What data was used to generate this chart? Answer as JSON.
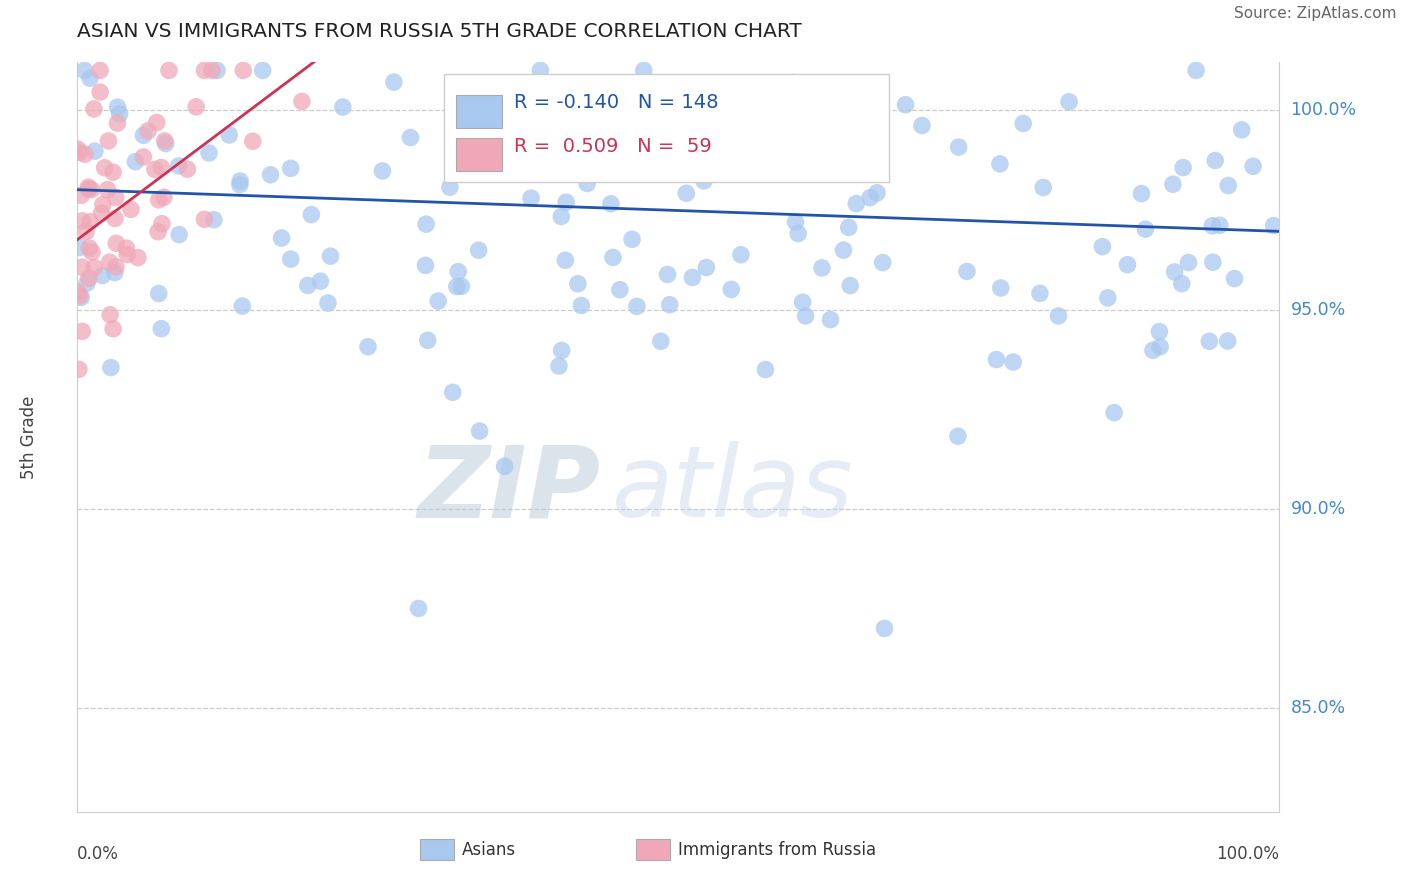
{
  "title": "ASIAN VS IMMIGRANTS FROM RUSSIA 5TH GRADE CORRELATION CHART",
  "source_text": "Source: ZipAtlas.com",
  "legend_blue_r": "-0.140",
  "legend_blue_n": "148",
  "legend_pink_r": "0.509",
  "legend_pink_n": "59",
  "blue_color": "#a8c8f0",
  "pink_color": "#f0a8b8",
  "blue_line_color": "#2255aa",
  "pink_line_color": "#cc3355",
  "ytick_labels": [
    "85.0%",
    "90.0%",
    "95.0%",
    "100.0%"
  ],
  "ytick_values": [
    0.85,
    0.9,
    0.95,
    1.0
  ],
  "xlim": [
    0.0,
    1.0
  ],
  "ylim": [
    0.824,
    1.012
  ],
  "ylabel": "5th Grade",
  "watermark_dark": "ZIP",
  "watermark_light": "atlas",
  "blue_n": 148,
  "pink_n": 59,
  "blue_r": -0.14,
  "pink_r": 0.509,
  "blue_seed": 12,
  "pink_seed": 99
}
